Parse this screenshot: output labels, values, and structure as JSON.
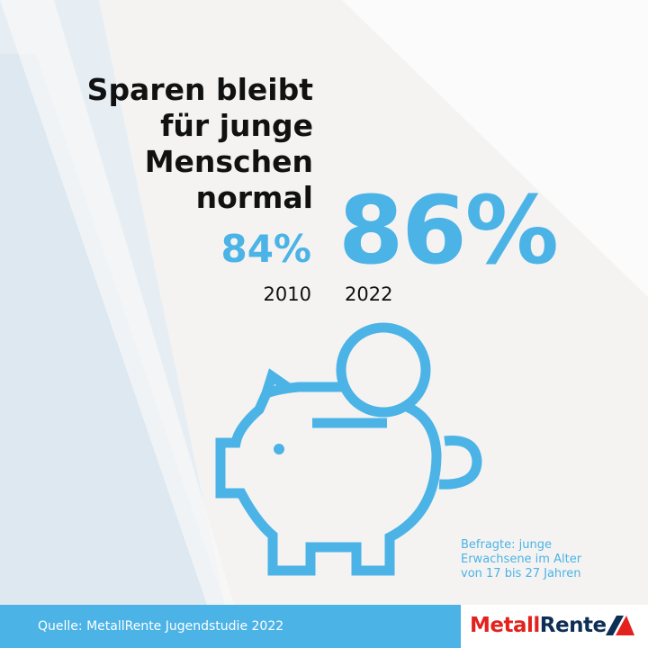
{
  "title_lines": [
    "Sparen bleibt",
    "für junge",
    "Menschen",
    "normal"
  ],
  "stats": [
    {
      "year": "2010",
      "value": "84%"
    },
    {
      "year": "2022",
      "value": "86%"
    }
  ],
  "note_lines": [
    "Befragte: junge",
    "Erwachsene im Alter",
    "von 17 bis 27 Jahren"
  ],
  "footer": {
    "source": "Quelle: MetallRente Jugendstudie 2022",
    "logo_part1": "Metall",
    "logo_part2": "Rente"
  },
  "colors": {
    "accent": "#4bb3e6",
    "logo_red": "#e3211d",
    "logo_navy": "#0e2e55"
  },
  "icon": "piggy-bank-icon"
}
